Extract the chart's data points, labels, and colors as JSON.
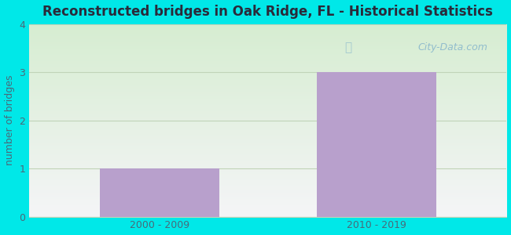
{
  "title": "Reconstructed bridges in Oak Ridge, FL - Historical Statistics",
  "categories": [
    "2000 - 2009",
    "2010 - 2019"
  ],
  "values": [
    1,
    3
  ],
  "bar_color": "#b8a0cc",
  "ylabel": "number of bridges",
  "ylim": [
    0,
    4
  ],
  "yticks": [
    0,
    1,
    2,
    3,
    4
  ],
  "background_outer": "#00e8e8",
  "background_plot_top": "#f5f5f5",
  "background_plot_bottom": "#d8ecd0",
  "title_color": "#2a2a3a",
  "axis_label_color": "#4a6a7a",
  "tick_label_color": "#4a6a7a",
  "grid_color": "#c0d4b8",
  "title_fontsize": 12,
  "label_fontsize": 9,
  "tick_fontsize": 9,
  "watermark_text": "City-Data.com"
}
